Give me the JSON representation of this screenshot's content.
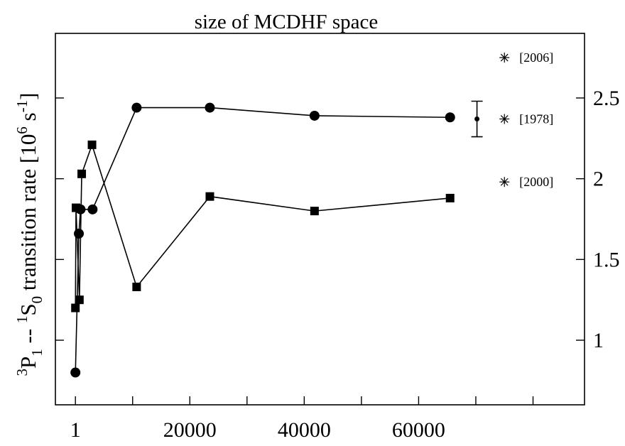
{
  "chart_data": {
    "type": "line",
    "title": "size of MCDHF space",
    "ylabel": {
      "pre1": "3",
      "part1": "P",
      "sub1": "1",
      "dash": " -- ",
      "pre2": "1",
      "part2": "S",
      "sub2": "0",
      "mid": "  transition rate [10",
      "exp": "6",
      "unit": " s",
      "unitexp": "-1",
      "close": "]"
    },
    "xlim": [
      -3500,
      89000
    ],
    "ylim": [
      0.6,
      2.9
    ],
    "x_ticks": [
      {
        "value": 1,
        "label": "1"
      },
      {
        "value": 20000,
        "label": "20000"
      },
      {
        "value": 40000,
        "label": "40000"
      },
      {
        "value": 60000,
        "label": "60000"
      }
    ],
    "x_minor_ticks": [
      10000,
      30000,
      50000,
      70000,
      80000
    ],
    "y_ticks_right": [
      {
        "value": 1.0,
        "label": "1"
      },
      {
        "value": 1.5,
        "label": "1.5"
      },
      {
        "value": 2.0,
        "label": "2"
      },
      {
        "value": 2.5,
        "label": "2.5"
      }
    ],
    "series": [
      {
        "marker": "circle",
        "points": [
          [
            1,
            0.8
          ],
          [
            600,
            1.66
          ],
          [
            900,
            1.81
          ],
          [
            3000,
            1.81
          ],
          [
            10700,
            2.44
          ],
          [
            23500,
            2.44
          ],
          [
            41800,
            2.39
          ],
          [
            65500,
            2.38
          ]
        ]
      },
      {
        "marker": "square",
        "points": [
          [
            1,
            1.2
          ],
          [
            100,
            1.82
          ],
          [
            700,
            1.25
          ],
          [
            1100,
            2.03
          ],
          [
            2900,
            2.21
          ],
          [
            10700,
            1.33
          ],
          [
            23500,
            1.89
          ],
          [
            41800,
            1.8
          ],
          [
            65500,
            1.88
          ]
        ]
      }
    ],
    "error_bar": {
      "x": 70200,
      "y": 2.37,
      "low": 2.26,
      "high": 2.48
    },
    "annotations": [
      {
        "x": 75000,
        "y": 2.75,
        "marker": "asterisk",
        "label": "[2006]"
      },
      {
        "x": 75000,
        "y": 2.37,
        "marker": "asterisk",
        "label": "[1978]"
      },
      {
        "x": 75000,
        "y": 1.98,
        "marker": "asterisk",
        "label": "[2000]"
      }
    ]
  }
}
